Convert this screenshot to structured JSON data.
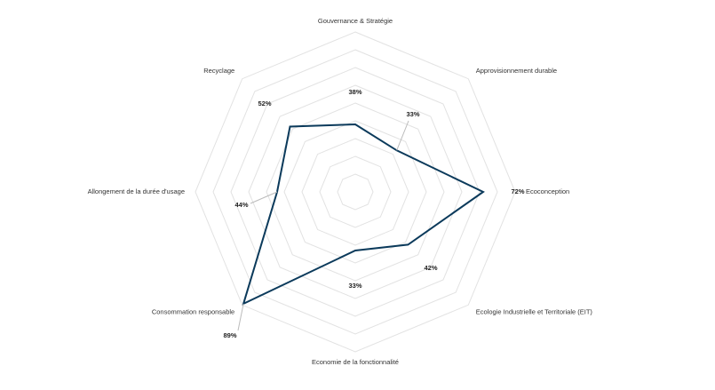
{
  "chart_data": {
    "type": "radar",
    "categories": [
      "Gouvernance & Stratégie",
      "Approvisionnement durable",
      "Ecoconception",
      "Ecologie Industrielle et Territoriale (EIT)",
      "Economie de la fonctionnalité",
      "Consommation responsable",
      "Allongement de la durée d'usage",
      "Recyclage"
    ],
    "values": [
      38,
      33,
      72,
      42,
      33,
      89,
      44,
      52
    ],
    "value_labels": [
      "38%",
      "33%",
      "72%",
      "42%",
      "33%",
      "89%",
      "44%",
      "52%"
    ],
    "color": "#0b3a5b",
    "rlim": [
      0,
      90
    ],
    "rticks": [
      10,
      20,
      30,
      40,
      50,
      60,
      70,
      80,
      90
    ],
    "grid": true
  }
}
